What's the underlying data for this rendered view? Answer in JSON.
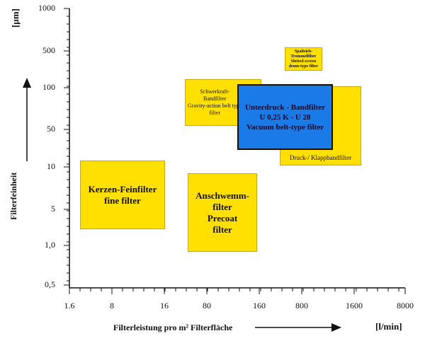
{
  "y_axis": {
    "unit": "[µm]",
    "title": "Filterfeinheit",
    "tick_labels": [
      "1000",
      "500",
      "100",
      "50",
      "10",
      "5",
      "1,0",
      "0,5"
    ]
  },
  "x_axis": {
    "title": "Filterleistung  pro m² Filterfläche",
    "unit": "[l/min]",
    "tick_labels": [
      "1.6",
      "8",
      "16",
      "80",
      "160",
      "800",
      "1600",
      "8000"
    ]
  },
  "boxes": [
    {
      "id": "kerzen",
      "color": "#ffe000",
      "text": "Kerzen-Feinfilter\nfine filter"
    },
    {
      "id": "anschwemm",
      "color": "#ffe000",
      "text": "Anschwemm-\nfilter\nPrecoat\nfilter"
    },
    {
      "id": "schwerkraft",
      "color": "#ffe000",
      "text": "Schwerkraft-\nBandfilter\nGravity-action belt type\nfilter"
    },
    {
      "id": "druck",
      "color": "#ffe000",
      "text": "Druck-/ Klappbandfilter"
    },
    {
      "id": "spaltsieb",
      "color": "#ffe000",
      "text": "Spaltsieb-\nTrommelfilter\nSlotted screen\ndrum-type filter"
    },
    {
      "id": "unterdruck",
      "color": "#1a7ae8",
      "text": "Unterdruck - Bandfilter\nU 0,25 K - U 28\nVacuum belt-type filter"
    }
  ]
}
